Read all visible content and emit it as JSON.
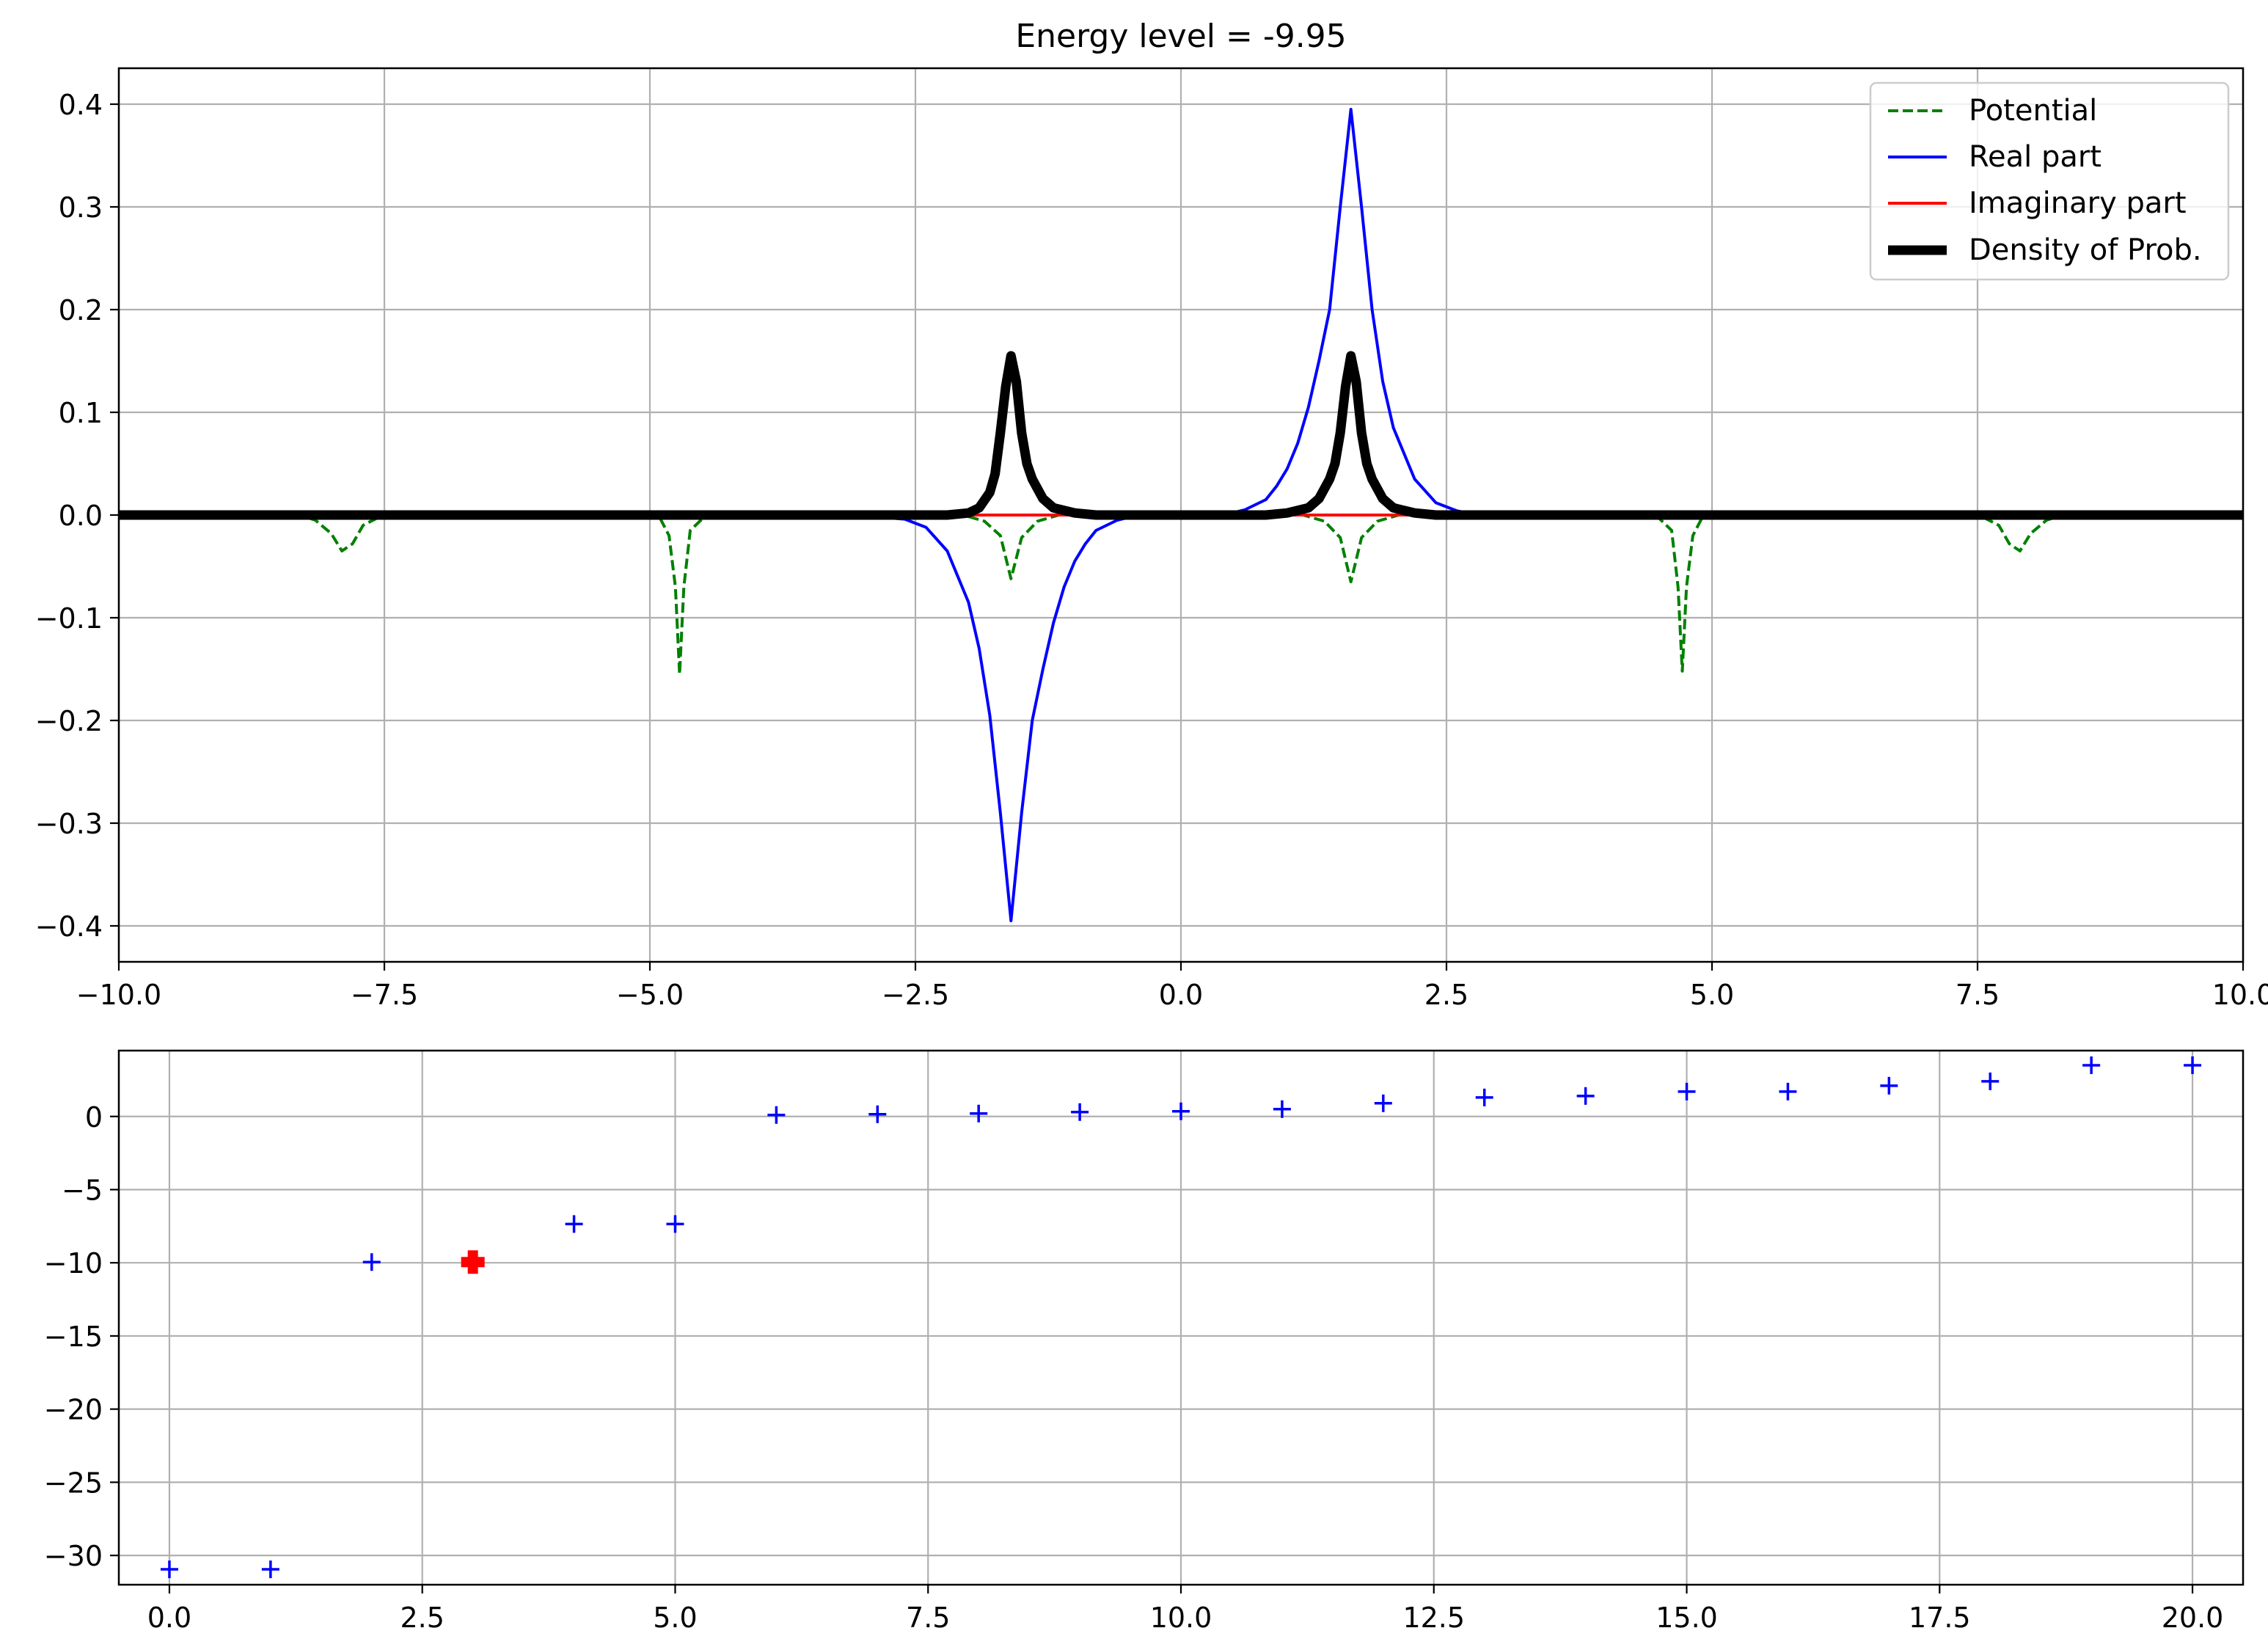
{
  "chart_data": [
    {
      "type": "line",
      "title": "Energy level = -9.95",
      "xlabel": "",
      "ylabel": "",
      "xlim": [
        -10,
        10
      ],
      "ylim": [
        -0.435,
        0.435
      ],
      "grid": true,
      "legend": "top-right",
      "xticks": [
        {
          "value": -10,
          "label": "−10.0"
        },
        {
          "value": -7.5,
          "label": "−7.5"
        },
        {
          "value": -5,
          "label": "−5.0"
        },
        {
          "value": -2.5,
          "label": "−2.5"
        },
        {
          "value": 0,
          "label": "0.0"
        },
        {
          "value": 2.5,
          "label": "2.5"
        },
        {
          "value": 5,
          "label": "5.0"
        },
        {
          "value": 7.5,
          "label": "7.5"
        },
        {
          "value": 10,
          "label": "10.0"
        }
      ],
      "yticks": [
        {
          "value": 0.4,
          "label": "0.4"
        },
        {
          "value": 0.3,
          "label": "0.3"
        },
        {
          "value": 0.2,
          "label": "0.2"
        },
        {
          "value": 0.1,
          "label": "0.1"
        },
        {
          "value": 0.0,
          "label": "0.0"
        },
        {
          "value": -0.1,
          "label": "−0.1"
        },
        {
          "value": -0.2,
          "label": "−0.2"
        },
        {
          "value": -0.3,
          "label": "−0.3"
        },
        {
          "value": -0.4,
          "label": "−0.4"
        }
      ],
      "series": [
        {
          "name": "Potential",
          "color": "#008000",
          "style": "dashed",
          "points": [
            [
              -10,
              0
            ],
            [
              -8.3,
              0
            ],
            [
              -8.15,
              -0.005
            ],
            [
              -8.0,
              -0.018
            ],
            [
              -7.9,
              -0.035
            ],
            [
              -7.8,
              -0.028
            ],
            [
              -7.7,
              -0.01
            ],
            [
              -7.55,
              -0.002
            ],
            [
              -7.4,
              0
            ],
            [
              -5.0,
              0
            ],
            [
              -4.9,
              -0.004
            ],
            [
              -4.82,
              -0.02
            ],
            [
              -4.76,
              -0.07
            ],
            [
              -4.72,
              -0.155
            ],
            [
              -4.68,
              -0.07
            ],
            [
              -4.62,
              -0.015
            ],
            [
              -4.5,
              -0.003
            ],
            [
              -4.4,
              0
            ],
            [
              -2.05,
              0
            ],
            [
              -1.85,
              -0.006
            ],
            [
              -1.7,
              -0.02
            ],
            [
              -1.6,
              -0.062
            ],
            [
              -1.5,
              -0.022
            ],
            [
              -1.35,
              -0.006
            ],
            [
              -1.15,
              0
            ],
            [
              1.15,
              0
            ],
            [
              1.35,
              -0.006
            ],
            [
              1.5,
              -0.022
            ],
            [
              1.6,
              -0.065
            ],
            [
              1.7,
              -0.022
            ],
            [
              1.85,
              -0.006
            ],
            [
              2.05,
              0
            ],
            [
              4.4,
              0
            ],
            [
              4.5,
              -0.003
            ],
            [
              4.62,
              -0.015
            ],
            [
              4.68,
              -0.07
            ],
            [
              4.72,
              -0.152
            ],
            [
              4.76,
              -0.07
            ],
            [
              4.82,
              -0.02
            ],
            [
              4.9,
              -0.004
            ],
            [
              5.0,
              0
            ],
            [
              7.4,
              0
            ],
            [
              7.55,
              -0.002
            ],
            [
              7.7,
              -0.01
            ],
            [
              7.8,
              -0.028
            ],
            [
              7.9,
              -0.035
            ],
            [
              8.0,
              -0.018
            ],
            [
              8.15,
              -0.005
            ],
            [
              8.3,
              0
            ],
            [
              10,
              0
            ]
          ]
        },
        {
          "name": "Real part",
          "color": "#0000ff",
          "style": "solid",
          "points": [
            [
              -10,
              0
            ],
            [
              -3.1,
              0
            ],
            [
              -2.6,
              -0.004
            ],
            [
              -2.4,
              -0.012
            ],
            [
              -2.2,
              -0.035
            ],
            [
              -2.0,
              -0.085
            ],
            [
              -1.9,
              -0.13
            ],
            [
              -1.8,
              -0.195
            ],
            [
              -1.7,
              -0.29
            ],
            [
              -1.6,
              -0.395
            ],
            [
              -1.5,
              -0.29
            ],
            [
              -1.4,
              -0.2
            ],
            [
              -1.3,
              -0.15
            ],
            [
              -1.2,
              -0.105
            ],
            [
              -1.1,
              -0.07
            ],
            [
              -1.0,
              -0.045
            ],
            [
              -0.9,
              -0.028
            ],
            [
              -0.8,
              -0.015
            ],
            [
              -0.6,
              -0.005
            ],
            [
              -0.4,
              0
            ],
            [
              0.4,
              0
            ],
            [
              0.6,
              0.005
            ],
            [
              0.8,
              0.015
            ],
            [
              0.9,
              0.028
            ],
            [
              1.0,
              0.045
            ],
            [
              1.1,
              0.07
            ],
            [
              1.2,
              0.105
            ],
            [
              1.3,
              0.15
            ],
            [
              1.4,
              0.2
            ],
            [
              1.5,
              0.3
            ],
            [
              1.6,
              0.395
            ],
            [
              1.7,
              0.3
            ],
            [
              1.8,
              0.2
            ],
            [
              1.9,
              0.13
            ],
            [
              2.0,
              0.085
            ],
            [
              2.2,
              0.035
            ],
            [
              2.4,
              0.012
            ],
            [
              2.6,
              0.004
            ],
            [
              2.8,
              0
            ],
            [
              10,
              0
            ]
          ]
        },
        {
          "name": "Imaginary part",
          "color": "#ff0000",
          "style": "solid",
          "points": [
            [
              -10,
              0
            ],
            [
              10,
              0
            ]
          ]
        },
        {
          "name": "Density of Prob.",
          "color": "#000000",
          "style": "solid-thick",
          "points": [
            [
              -10,
              0
            ],
            [
              -2.2,
              0
            ],
            [
              -2.0,
              0.002
            ],
            [
              -1.9,
              0.007
            ],
            [
              -1.8,
              0.022
            ],
            [
              -1.75,
              0.04
            ],
            [
              -1.7,
              0.08
            ],
            [
              -1.65,
              0.125
            ],
            [
              -1.6,
              0.155
            ],
            [
              -1.55,
              0.13
            ],
            [
              -1.5,
              0.08
            ],
            [
              -1.45,
              0.05
            ],
            [
              -1.4,
              0.035
            ],
            [
              -1.3,
              0.016
            ],
            [
              -1.2,
              0.007
            ],
            [
              -1.0,
              0.002
            ],
            [
              -0.8,
              0
            ],
            [
              0.8,
              0
            ],
            [
              1.0,
              0.002
            ],
            [
              1.2,
              0.007
            ],
            [
              1.3,
              0.016
            ],
            [
              1.4,
              0.035
            ],
            [
              1.45,
              0.05
            ],
            [
              1.5,
              0.08
            ],
            [
              1.55,
              0.125
            ],
            [
              1.6,
              0.155
            ],
            [
              1.65,
              0.13
            ],
            [
              1.7,
              0.08
            ],
            [
              1.75,
              0.05
            ],
            [
              1.8,
              0.035
            ],
            [
              1.9,
              0.016
            ],
            [
              2.0,
              0.007
            ],
            [
              2.2,
              0.002
            ],
            [
              2.4,
              0
            ],
            [
              10,
              0
            ]
          ]
        }
      ]
    },
    {
      "type": "scatter",
      "title": "",
      "xlabel": "",
      "ylabel": "",
      "xlim": [
        -0.5,
        20.5
      ],
      "ylim": [
        -32,
        4.5
      ],
      "grid": true,
      "xticks": [
        {
          "value": 0,
          "label": "0.0"
        },
        {
          "value": 2.5,
          "label": "2.5"
        },
        {
          "value": 5,
          "label": "5.0"
        },
        {
          "value": 7.5,
          "label": "7.5"
        },
        {
          "value": 10,
          "label": "10.0"
        },
        {
          "value": 12.5,
          "label": "12.5"
        },
        {
          "value": 15,
          "label": "15.0"
        },
        {
          "value": 17.5,
          "label": "17.5"
        },
        {
          "value": 20,
          "label": "20.0"
        }
      ],
      "yticks": [
        {
          "value": 0,
          "label": "0"
        },
        {
          "value": -5,
          "label": "−5"
        },
        {
          "value": -10,
          "label": "−10"
        },
        {
          "value": -15,
          "label": "−15"
        },
        {
          "value": -20,
          "label": "−20"
        },
        {
          "value": -25,
          "label": "−25"
        },
        {
          "value": -30,
          "label": "−30"
        }
      ],
      "series": [
        {
          "marker": "plus",
          "color": "#0000ff",
          "x": [
            0,
            1,
            2,
            3,
            4,
            5,
            6,
            7,
            8,
            9,
            10,
            11,
            12,
            13,
            14,
            15,
            16,
            17,
            18,
            19,
            20
          ],
          "y": [
            -30.95,
            -30.95,
            -9.95,
            -9.95,
            -7.35,
            -7.35,
            0.1,
            0.15,
            0.2,
            0.3,
            0.35,
            0.5,
            0.9,
            1.3,
            1.4,
            1.7,
            1.7,
            2.1,
            2.4,
            3.5,
            3.5
          ]
        },
        {
          "marker": "bold-plus",
          "color": "#ff0000",
          "x": [
            3
          ],
          "y": [
            -9.95
          ]
        }
      ]
    }
  ]
}
